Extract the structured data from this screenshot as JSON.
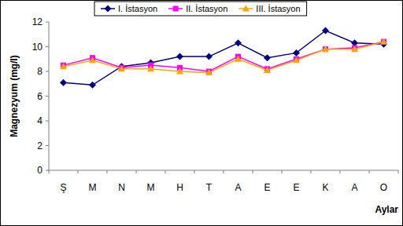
{
  "chart_data": {
    "type": "line",
    "x_label": "Aylar",
    "y_label": "Magnezyum (mg/l)",
    "categories": [
      "Ş",
      "M",
      "N",
      "M",
      "H",
      "T",
      "A",
      "E",
      "E",
      "K",
      "A",
      "O"
    ],
    "series": [
      {
        "name": "I. İstasyon",
        "color": "#000080",
        "marker": "diamond",
        "line_style": "solid",
        "values": [
          7.1,
          6.9,
          8.4,
          8.7,
          9.2,
          9.2,
          10.3,
          9.1,
          9.5,
          11.3,
          10.3,
          10.2
        ]
      },
      {
        "name": "II. İstasyon",
        "color": "#ff00ff",
        "marker": "square",
        "line_style": "solid",
        "values": [
          8.5,
          9.1,
          8.3,
          8.5,
          8.3,
          8.0,
          9.2,
          8.2,
          9.0,
          9.8,
          9.9,
          10.4
        ]
      },
      {
        "name": "III. İstasyon",
        "color": "#ffa500",
        "marker": "triangle",
        "line_style": "solid",
        "values": [
          8.4,
          8.9,
          8.2,
          8.2,
          8.0,
          7.9,
          9.0,
          8.1,
          8.9,
          9.8,
          9.8,
          10.4
        ]
      }
    ],
    "ylim": [
      0,
      12
    ],
    "yticks": [
      0,
      2,
      4,
      6,
      8,
      10,
      12
    ],
    "grid": false,
    "legend": "top"
  }
}
